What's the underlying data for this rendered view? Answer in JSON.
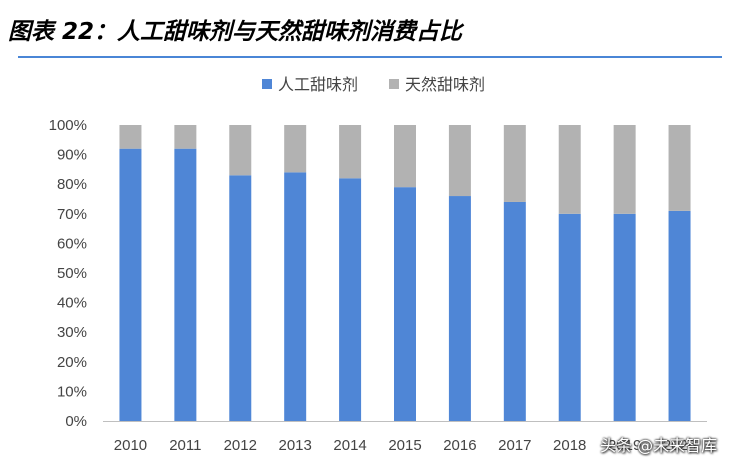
{
  "title": "图表 22：人工甜味剂与天然甜味剂消费占比",
  "watermark": "头条 @未来智库",
  "chart_data": {
    "type": "bar",
    "stacked": true,
    "categories": [
      "2010",
      "2011",
      "2012",
      "2013",
      "2014",
      "2015",
      "2016",
      "2017",
      "2018",
      "2019",
      "2020"
    ],
    "series": [
      {
        "name": "人工甜味剂",
        "color": "#4f86d6",
        "values": [
          92,
          92,
          83,
          84,
          82,
          79,
          76,
          74,
          70,
          70,
          71
        ]
      },
      {
        "name": "天然甜味剂",
        "color": "#b2b2b2",
        "values": [
          8,
          8,
          17,
          16,
          18,
          21,
          24,
          26,
          30,
          30,
          29
        ]
      }
    ],
    "yticks": [
      "0%",
      "10%",
      "20%",
      "30%",
      "40%",
      "50%",
      "60%",
      "70%",
      "80%",
      "90%",
      "100%"
    ],
    "ylim": [
      0,
      100
    ],
    "legend_position": "top",
    "grid": false
  }
}
